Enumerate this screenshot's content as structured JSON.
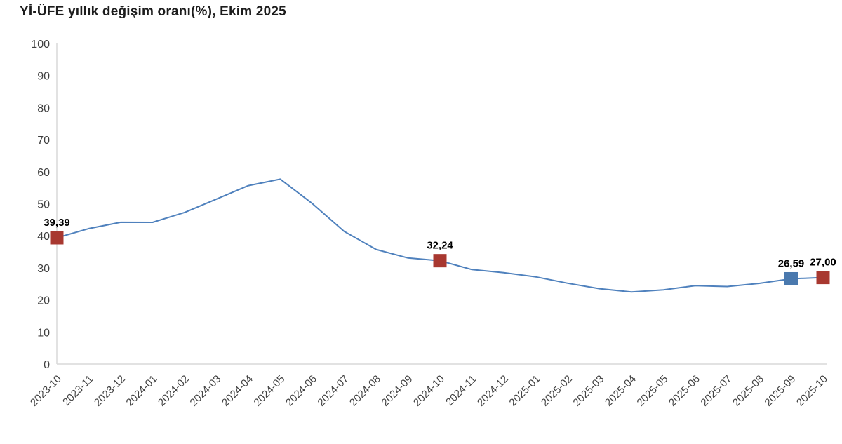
{
  "title": "Yİ-ÜFE yıllık değişim oranı(%), Ekim 2025",
  "colors": {
    "line": "#4f81bd",
    "marker_red": "#a83830",
    "marker_blue": "#4a79ae",
    "axis_line": "#d9d9d9",
    "tick_text": "#404040",
    "title_text": "#1c1c1c",
    "annotation_text": "#000000"
  },
  "chart_data": {
    "type": "line",
    "title": "Yİ-ÜFE yıllık değişim oranı(%), Ekim 2025",
    "xlabel": "",
    "ylabel": "",
    "ylim": [
      0,
      100
    ],
    "yticks": [
      0,
      10,
      20,
      30,
      40,
      50,
      60,
      70,
      80,
      90,
      100
    ],
    "grid": false,
    "legend": "none",
    "categories": [
      "2023-10",
      "2023-11",
      "2023-12",
      "2024-01",
      "2024-02",
      "2024-03",
      "2024-04",
      "2024-05",
      "2024-06",
      "2024-07",
      "2024-08",
      "2024-09",
      "2024-10",
      "2024-11",
      "2024-12",
      "2025-01",
      "2025-02",
      "2025-03",
      "2025-04",
      "2025-05",
      "2025-06",
      "2025-07",
      "2025-08",
      "2025-09",
      "2025-10"
    ],
    "series": [
      {
        "name": "Yİ-ÜFE yıllık değişim oranı (%)",
        "values": [
          39.39,
          42.25,
          44.22,
          44.2,
          47.29,
          51.47,
          55.66,
          57.68,
          50.09,
          41.37,
          35.75,
          33.09,
          32.24,
          29.47,
          28.52,
          27.2,
          25.21,
          23.5,
          22.5,
          23.13,
          24.45,
          24.19,
          25.16,
          26.59,
          27.0
        ]
      }
    ],
    "annotations": [
      {
        "category": "2023-10",
        "value": 39.39,
        "label": "39,39",
        "marker": "square",
        "color_key": "marker_red"
      },
      {
        "category": "2024-10",
        "value": 32.24,
        "label": "32,24",
        "marker": "square",
        "color_key": "marker_red"
      },
      {
        "category": "2025-09",
        "value": 26.59,
        "label": "26,59",
        "marker": "square",
        "color_key": "marker_blue"
      },
      {
        "category": "2025-10",
        "value": 27.0,
        "label": "27,00",
        "marker": "square",
        "color_key": "marker_red"
      }
    ]
  }
}
